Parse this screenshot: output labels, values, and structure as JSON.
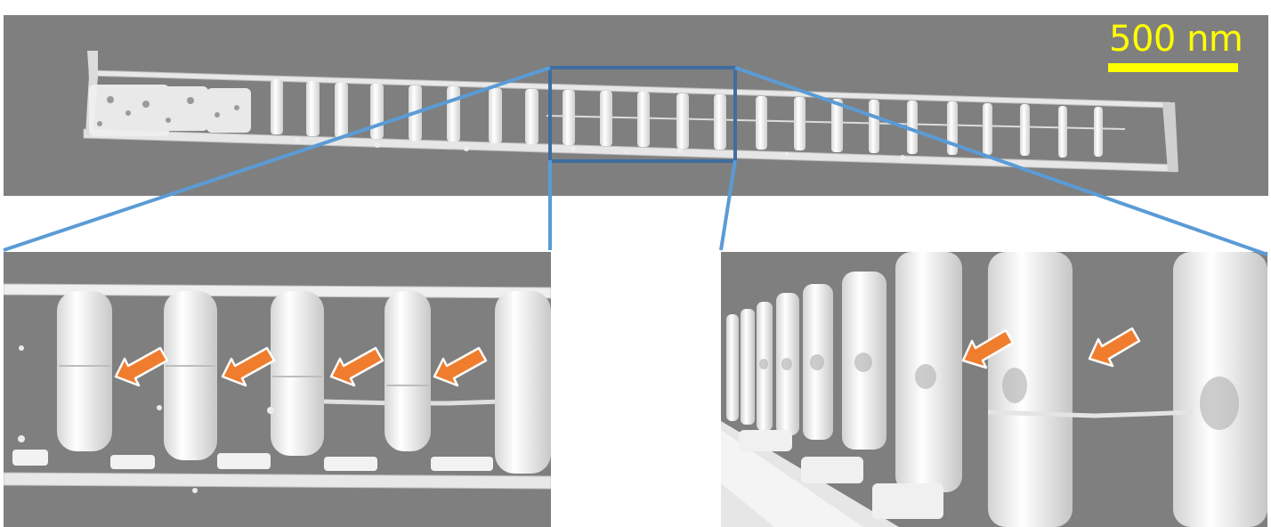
{
  "scale_bar": {
    "label": "500 nm",
    "color": "#ffff00"
  },
  "colors": {
    "background": "#7f7f7f",
    "structure": "#f2f2f2",
    "zoom_lines": "#5b9bd5",
    "zoom_box": "#3f6d9e",
    "arrows": "#f07d2e"
  },
  "panels": [
    {
      "name": "overview-rendering"
    },
    {
      "name": "zoom-side-view",
      "arrow_count": 4
    },
    {
      "name": "zoom-perspective-view",
      "arrow_count": 2
    }
  ]
}
